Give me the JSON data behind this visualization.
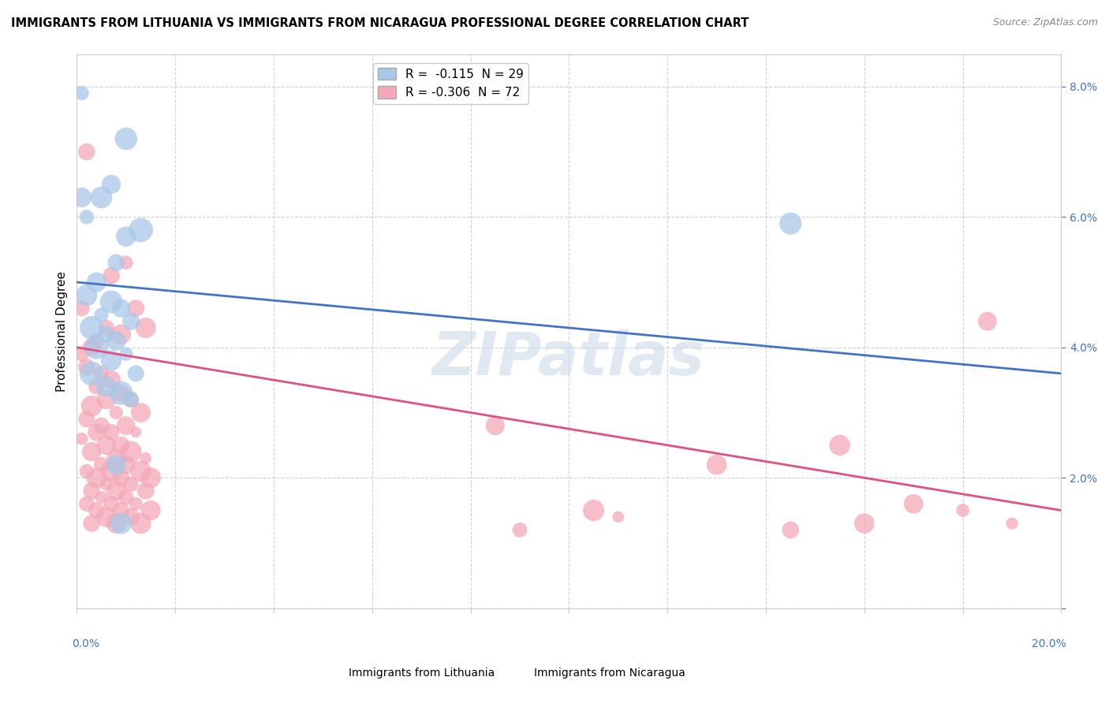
{
  "title": "IMMIGRANTS FROM LITHUANIA VS IMMIGRANTS FROM NICARAGUA PROFESSIONAL DEGREE CORRELATION CHART",
  "source": "Source: ZipAtlas.com",
  "ylabel": "Professional Degree",
  "xmin": 0.0,
  "xmax": 0.2,
  "ymin": 0.0,
  "ymax": 0.085,
  "legend_entries": [
    {
      "label": "R =  -0.115  N = 29",
      "color": "#a8c8e8"
    },
    {
      "label": "R = -0.306  N = 72",
      "color": "#f4a8b8"
    }
  ],
  "lithuania_color": "#a8c8e8",
  "nicaragua_color": "#f4a8b8",
  "lithuania_line_color": "#4472c4",
  "nicaragua_line_color": "#e05080",
  "watermark": "ZIPatlas",
  "lithuania_points": [
    [
      0.001,
      0.079
    ],
    [
      0.01,
      0.072
    ],
    [
      0.007,
      0.065
    ],
    [
      0.005,
      0.063
    ],
    [
      0.013,
      0.058
    ],
    [
      0.01,
      0.057
    ],
    [
      0.001,
      0.063
    ],
    [
      0.002,
      0.06
    ],
    [
      0.008,
      0.053
    ],
    [
      0.004,
      0.05
    ],
    [
      0.002,
      0.048
    ],
    [
      0.007,
      0.047
    ],
    [
      0.009,
      0.046
    ],
    [
      0.005,
      0.045
    ],
    [
      0.011,
      0.044
    ],
    [
      0.003,
      0.043
    ],
    [
      0.006,
      0.042
    ],
    [
      0.008,
      0.041
    ],
    [
      0.004,
      0.04
    ],
    [
      0.01,
      0.039
    ],
    [
      0.007,
      0.038
    ],
    [
      0.003,
      0.036
    ],
    [
      0.012,
      0.036
    ],
    [
      0.006,
      0.034
    ],
    [
      0.009,
      0.033
    ],
    [
      0.011,
      0.032
    ],
    [
      0.008,
      0.022
    ],
    [
      0.145,
      0.059
    ],
    [
      0.009,
      0.013
    ]
  ],
  "nicaragua_points": [
    [
      0.002,
      0.07
    ],
    [
      0.01,
      0.053
    ],
    [
      0.007,
      0.051
    ],
    [
      0.001,
      0.046
    ],
    [
      0.012,
      0.046
    ],
    [
      0.006,
      0.043
    ],
    [
      0.014,
      0.043
    ],
    [
      0.009,
      0.042
    ],
    [
      0.004,
      0.041
    ],
    [
      0.003,
      0.04
    ],
    [
      0.001,
      0.039
    ],
    [
      0.002,
      0.037
    ],
    [
      0.005,
      0.036
    ],
    [
      0.007,
      0.035
    ],
    [
      0.004,
      0.034
    ],
    [
      0.009,
      0.033
    ],
    [
      0.006,
      0.032
    ],
    [
      0.011,
      0.032
    ],
    [
      0.003,
      0.031
    ],
    [
      0.008,
      0.03
    ],
    [
      0.013,
      0.03
    ],
    [
      0.002,
      0.029
    ],
    [
      0.005,
      0.028
    ],
    [
      0.01,
      0.028
    ],
    [
      0.004,
      0.027
    ],
    [
      0.007,
      0.027
    ],
    [
      0.012,
      0.027
    ],
    [
      0.001,
      0.026
    ],
    [
      0.006,
      0.025
    ],
    [
      0.009,
      0.025
    ],
    [
      0.003,
      0.024
    ],
    [
      0.011,
      0.024
    ],
    [
      0.008,
      0.023
    ],
    [
      0.014,
      0.023
    ],
    [
      0.005,
      0.022
    ],
    [
      0.01,
      0.022
    ],
    [
      0.002,
      0.021
    ],
    [
      0.007,
      0.021
    ],
    [
      0.013,
      0.021
    ],
    [
      0.004,
      0.02
    ],
    [
      0.009,
      0.02
    ],
    [
      0.015,
      0.02
    ],
    [
      0.006,
      0.019
    ],
    [
      0.011,
      0.019
    ],
    [
      0.003,
      0.018
    ],
    [
      0.008,
      0.018
    ],
    [
      0.014,
      0.018
    ],
    [
      0.005,
      0.017
    ],
    [
      0.01,
      0.017
    ],
    [
      0.002,
      0.016
    ],
    [
      0.007,
      0.016
    ],
    [
      0.012,
      0.016
    ],
    [
      0.004,
      0.015
    ],
    [
      0.009,
      0.015
    ],
    [
      0.015,
      0.015
    ],
    [
      0.006,
      0.014
    ],
    [
      0.011,
      0.014
    ],
    [
      0.003,
      0.013
    ],
    [
      0.008,
      0.013
    ],
    [
      0.013,
      0.013
    ],
    [
      0.085,
      0.028
    ],
    [
      0.13,
      0.022
    ],
    [
      0.105,
      0.015
    ],
    [
      0.11,
      0.014
    ],
    [
      0.155,
      0.025
    ],
    [
      0.09,
      0.012
    ],
    [
      0.145,
      0.012
    ],
    [
      0.16,
      0.013
    ],
    [
      0.17,
      0.016
    ],
    [
      0.18,
      0.015
    ],
    [
      0.185,
      0.044
    ],
    [
      0.19,
      0.013
    ]
  ],
  "lith_line_x0": 0.0,
  "lith_line_y0": 0.05,
  "lith_line_x1": 0.2,
  "lith_line_y1": 0.036,
  "nica_line_x0": 0.0,
  "nica_line_y0": 0.04,
  "nica_line_x1": 0.2,
  "nica_line_y1": 0.015
}
